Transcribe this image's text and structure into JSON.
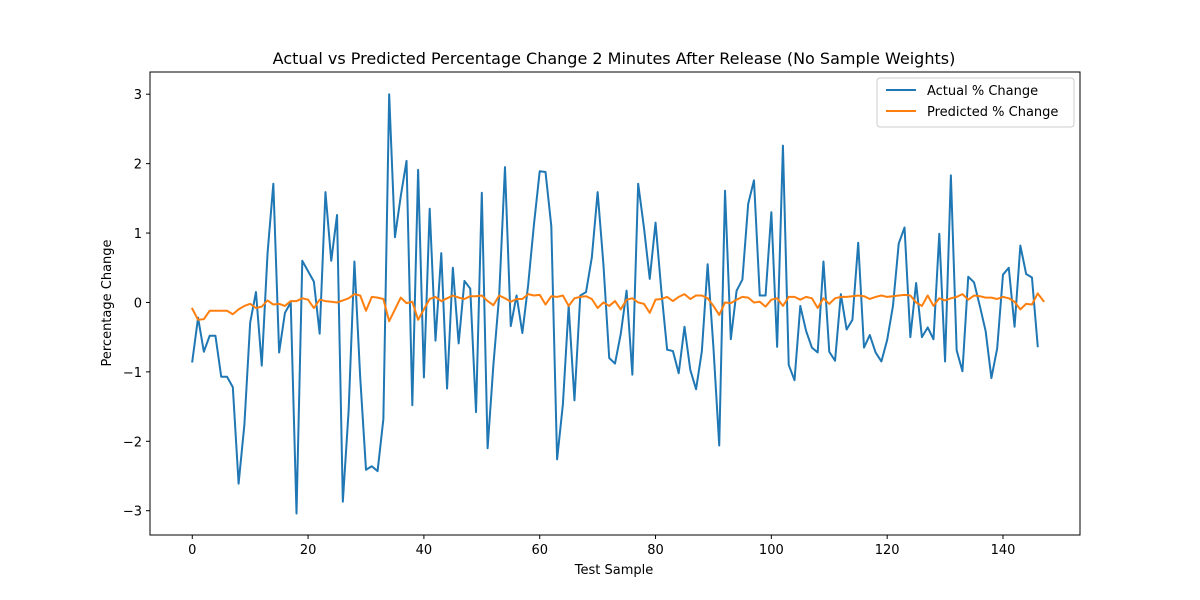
{
  "chart_data": {
    "type": "line",
    "title": "Actual vs Predicted Percentage Change 2 Minutes After Release (No Sample Weights)",
    "xlabel": "Test Sample",
    "ylabel": "Percentage Change",
    "xlim": [
      -7.3,
      153.3
    ],
    "ylim": [
      -3.35,
      3.32
    ],
    "xticks": [
      0,
      20,
      40,
      60,
      80,
      100,
      120,
      140
    ],
    "yticks": [
      -3,
      -2,
      -1,
      0,
      1,
      2,
      3
    ],
    "legend_position": "top-right",
    "grid": false,
    "series": [
      {
        "name": "Actual % Change",
        "color": "#1f77b4",
        "values": [
          -0.85,
          -0.22,
          -0.71,
          -0.48,
          -0.48,
          -1.07,
          -1.07,
          -1.22,
          -2.61,
          -1.76,
          -0.29,
          0.15,
          -0.91,
          0.71,
          1.71,
          -0.72,
          -0.15,
          0.0,
          -3.04,
          0.6,
          0.45,
          0.3,
          -0.45,
          1.59,
          0.6,
          1.26,
          -2.87,
          -1.56,
          0.59,
          -1.08,
          -2.41,
          -2.36,
          -2.43,
          -1.68,
          3.0,
          0.94,
          1.53,
          2.04,
          -1.48,
          1.91,
          -1.08,
          1.35,
          -0.55,
          0.71,
          -1.24,
          0.5,
          -0.59,
          0.31,
          0.2,
          -1.58,
          1.58,
          -2.1,
          -0.9,
          0.1,
          1.95,
          -0.34,
          0.1,
          -0.44,
          0.25,
          1.12,
          1.89,
          1.88,
          1.1,
          -2.26,
          -1.47,
          -0.05,
          -1.41,
          0.1,
          0.15,
          0.65,
          1.59,
          0.55,
          -0.8,
          -0.88,
          -0.45,
          0.17,
          -1.04,
          1.71,
          1.08,
          0.34,
          1.15,
          0.17,
          -0.68,
          -0.7,
          -1.02,
          -0.35,
          -0.97,
          -1.25,
          -0.7,
          0.55,
          -0.65,
          -2.06,
          1.61,
          -0.53,
          0.17,
          0.33,
          1.42,
          1.76,
          0.1,
          0.1,
          1.3,
          -0.64,
          2.26,
          -0.9,
          -1.12,
          -0.05,
          -0.41,
          -0.65,
          -0.72,
          0.59,
          -0.71,
          -0.84,
          0.12,
          -0.39,
          -0.25,
          0.86,
          -0.65,
          -0.47,
          -0.72,
          -0.85,
          -0.54,
          -0.05,
          0.85,
          1.08,
          -0.5,
          0.28,
          -0.5,
          -0.36,
          -0.53,
          0.99,
          -0.85,
          1.83,
          -0.69,
          -0.99,
          0.37,
          0.29,
          -0.05,
          -0.41,
          -1.09,
          -0.66,
          0.4,
          0.5,
          -0.35,
          0.82,
          0.41,
          0.36,
          -0.63
        ]
      },
      {
        "name": "Predicted % Change",
        "color": "#ff7f0e",
        "values": [
          -0.09,
          -0.25,
          -0.24,
          -0.12,
          -0.12,
          -0.12,
          -0.12,
          -0.17,
          -0.1,
          -0.05,
          -0.02,
          -0.08,
          -0.06,
          0.03,
          -0.03,
          -0.02,
          -0.05,
          0.02,
          0.02,
          0.06,
          0.04,
          -0.08,
          0.04,
          0.02,
          0.01,
          0.0,
          0.03,
          0.06,
          0.12,
          0.1,
          -0.12,
          0.08,
          0.07,
          0.05,
          -0.27,
          -0.1,
          0.07,
          -0.01,
          0.01,
          -0.25,
          -0.1,
          0.05,
          0.08,
          0.02,
          0.06,
          0.1,
          0.07,
          0.05,
          0.09,
          0.09,
          0.1,
          0.02,
          -0.04,
          0.1,
          0.06,
          0.01,
          0.05,
          0.05,
          0.12,
          0.1,
          0.11,
          -0.03,
          0.09,
          0.08,
          0.1,
          -0.05,
          0.06,
          0.08,
          0.09,
          0.05,
          -0.08,
          0.0,
          -0.05,
          0.02,
          -0.1,
          0.04,
          0.06,
          0.0,
          -0.02,
          -0.15,
          0.04,
          0.05,
          0.08,
          0.02,
          0.08,
          0.12,
          0.05,
          0.1,
          0.1,
          0.06,
          -0.05,
          -0.18,
          0.0,
          -0.01,
          0.04,
          0.08,
          0.07,
          0.0,
          0.01,
          -0.06,
          0.04,
          0.06,
          -0.05,
          0.08,
          0.08,
          0.04,
          0.08,
          0.06,
          -0.08,
          0.06,
          -0.02,
          0.06,
          0.08,
          0.08,
          0.09,
          0.1,
          0.09,
          0.05,
          0.08,
          0.1,
          0.08,
          0.09,
          0.1,
          0.11,
          0.1,
          0.0,
          -0.05,
          0.1,
          -0.05,
          0.06,
          0.03,
          0.06,
          0.08,
          0.12,
          0.04,
          0.1,
          0.09,
          0.07,
          0.07,
          0.05,
          0.08,
          0.06,
          0.01,
          -0.1,
          -0.02,
          -0.03,
          0.13,
          0.02
        ]
      }
    ]
  }
}
